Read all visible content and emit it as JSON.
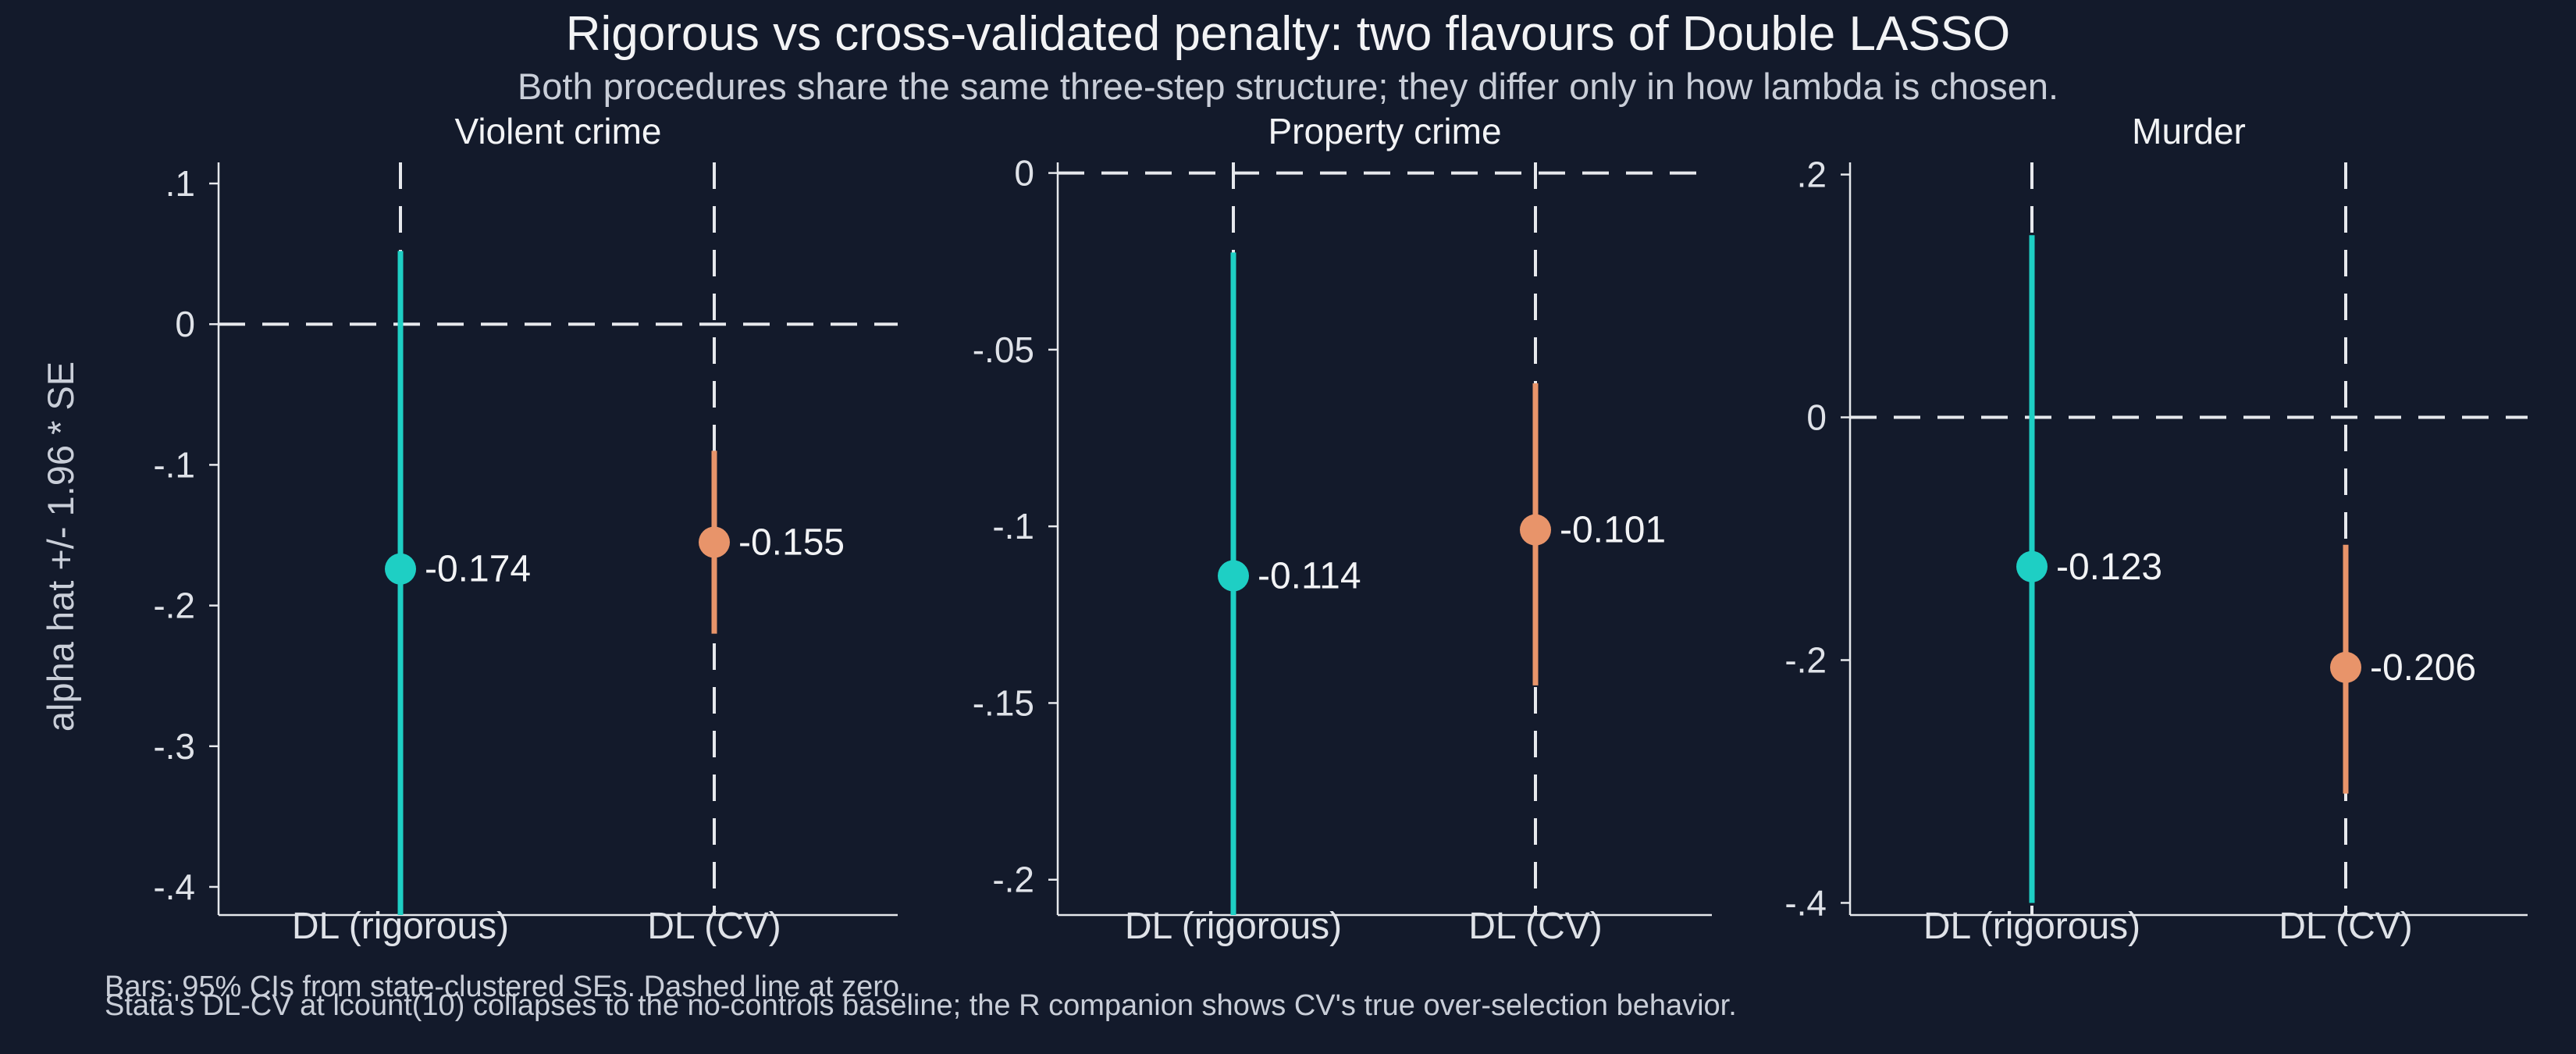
{
  "title": "Rigorous vs cross-validated penalty: two flavours of Double LASSO",
  "subtitle": "Both procedures share the same three-step structure; they differ only in how lambda is chosen.",
  "ylabel": "alpha hat +/- 1.96 * SE",
  "notes": [
    "Bars: 95% CIs from state-clustered SEs. Dashed line at zero.",
    "Stata's DL-CV at lcount(10) collapses to the no-controls baseline; the R companion shows CV's true over-selection behavior."
  ],
  "colors": {
    "background": "#131a2b",
    "rigorous": "#1ecfc4",
    "cv": "#e8946a",
    "axis": "#e6e8ec",
    "text": "#f2f3f5"
  },
  "chart_data": [
    {
      "type": "scatter",
      "panel_title": "Violent crime",
      "categories": [
        "DL (rigorous)",
        "DL (CV)"
      ],
      "estimates": [
        -0.174,
        -0.155
      ],
      "ci_low": [
        -0.42,
        -0.22
      ],
      "ci_high": [
        0.052,
        -0.09
      ],
      "point_labels": [
        "-0.174",
        "-0.155"
      ],
      "ylim": [
        -0.42,
        0.115
      ],
      "yticks": [
        0.1,
        0,
        -0.1,
        -0.2,
        -0.3,
        -0.4
      ],
      "ytick_labels": [
        ".1",
        "0",
        "-.1",
        "-.2",
        "-.3",
        "-.4"
      ],
      "reference_line": 0,
      "grid": false
    },
    {
      "type": "scatter",
      "panel_title": "Property crime",
      "categories": [
        "DL (rigorous)",
        "DL (CV)"
      ],
      "estimates": [
        -0.114,
        -0.101
      ],
      "ci_low": [
        -0.21,
        -0.145
      ],
      "ci_high": [
        -0.0225,
        -0.0595
      ],
      "point_labels": [
        "-0.114",
        "-0.101"
      ],
      "ylim": [
        -0.21,
        0.003
      ],
      "yticks": [
        0,
        -0.05,
        -0.1,
        -0.15,
        -0.2
      ],
      "ytick_labels": [
        "0",
        "-.05",
        "-.1",
        "-.15",
        "-.2"
      ],
      "reference_line": 0,
      "grid": false
    },
    {
      "type": "scatter",
      "panel_title": "Murder",
      "categories": [
        "DL (rigorous)",
        "DL (CV)"
      ],
      "estimates": [
        -0.123,
        -0.206
      ],
      "ci_low": [
        -0.4,
        -0.31
      ],
      "ci_high": [
        0.15,
        -0.105
      ],
      "point_labels": [
        "-0.123",
        "-0.206"
      ],
      "ylim": [
        -0.41,
        0.21
      ],
      "yticks": [
        0.2,
        0,
        -0.2,
        -0.4
      ],
      "ytick_labels": [
        ".2",
        "0",
        "-.2",
        "-.4"
      ],
      "reference_line": 0,
      "grid": false
    }
  ]
}
